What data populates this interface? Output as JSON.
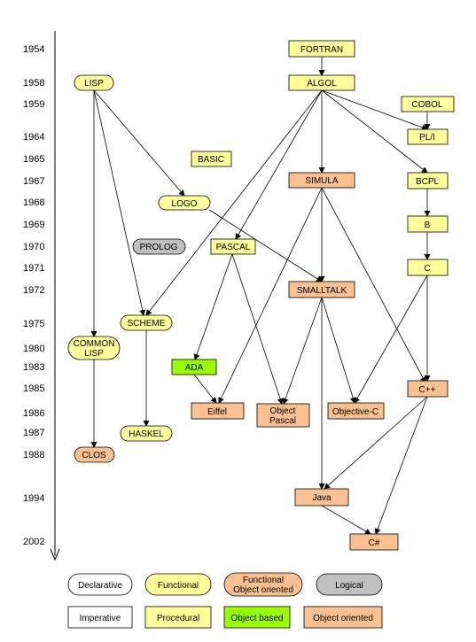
{
  "years": [
    "1954",
    "1958",
    "1959",
    "1964",
    "1965",
    "1967",
    "1968",
    "1969",
    "1970",
    "1971",
    "1972",
    "1975",
    "1980",
    "1983",
    "1985",
    "1986",
    "1987",
    "1988",
    "1994",
    "2002"
  ],
  "colors": {
    "functional": "#ffff99",
    "procedural": "#ffff99",
    "oo": "#fac090",
    "logical": "#c0c0c0",
    "object_based": "#99ff00",
    "declarative": "#ffffff",
    "imperative": "#ffffff"
  },
  "nodes": {
    "fortran": "FORTRAN",
    "algol": "ALGOL",
    "lisp": "LISP",
    "cobol": "COBOL",
    "pli": "PL/I",
    "basic": "BASIC",
    "simula": "SIMULA",
    "bcpl": "BCPL",
    "logo": "LOGO",
    "b": "B",
    "prolog": "PROLOG",
    "pascal": "PASCAL",
    "c": "C",
    "smalltalk": "SMALLTALK",
    "scheme": "SCHEME",
    "common_lisp_1": "COMMON",
    "common_lisp_2": "LISP",
    "ada": "ADA",
    "cpp": "C++",
    "eiffel": "Eiffel",
    "object_pascal_1": "Object",
    "object_pascal_2": "Pascal",
    "objective_c": "Objective-C",
    "haskel": "HASKEL",
    "clos": "CLOS",
    "java": "Java",
    "csharp": "C#"
  },
  "legend": {
    "declarative": "Declarative",
    "functional": "Functional",
    "functional_oo_1": "Functional",
    "functional_oo_2": "Object oriented",
    "logical": "Logical",
    "imperative": "Imperative",
    "procedural": "Procedural",
    "object_based": "Object based",
    "object_oriented": "Object oriented"
  }
}
